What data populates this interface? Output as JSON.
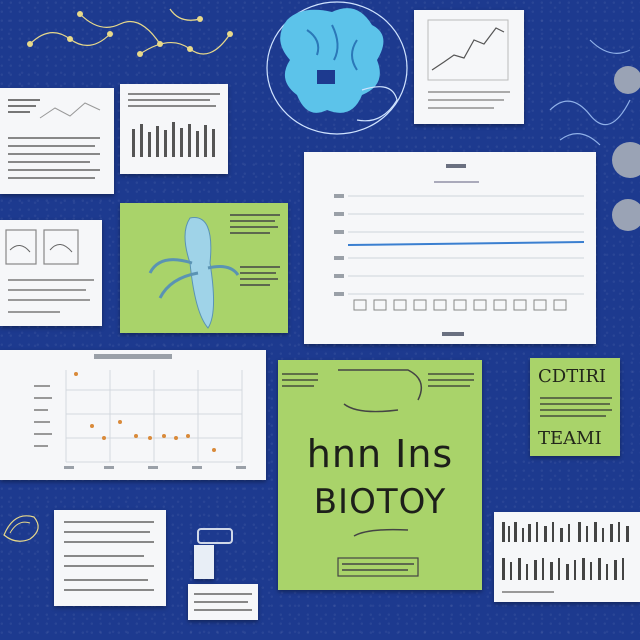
{
  "center_poster": {
    "line1": "hnn Ins",
    "line2": "BIOTOY"
  },
  "right_poster": {
    "line1": "CDTIRI",
    "line2": "TEAMI"
  },
  "colors": {
    "background": "#1d3a8f",
    "card": "#f6f7f9",
    "green_card": "#a9d36a",
    "doodle_blue": "#5cc3ea",
    "chart_line": "#3a7fd0"
  },
  "icons": [
    "neuron-doodle",
    "brain-illustration",
    "plant-illustration",
    "shell-doodle"
  ]
}
